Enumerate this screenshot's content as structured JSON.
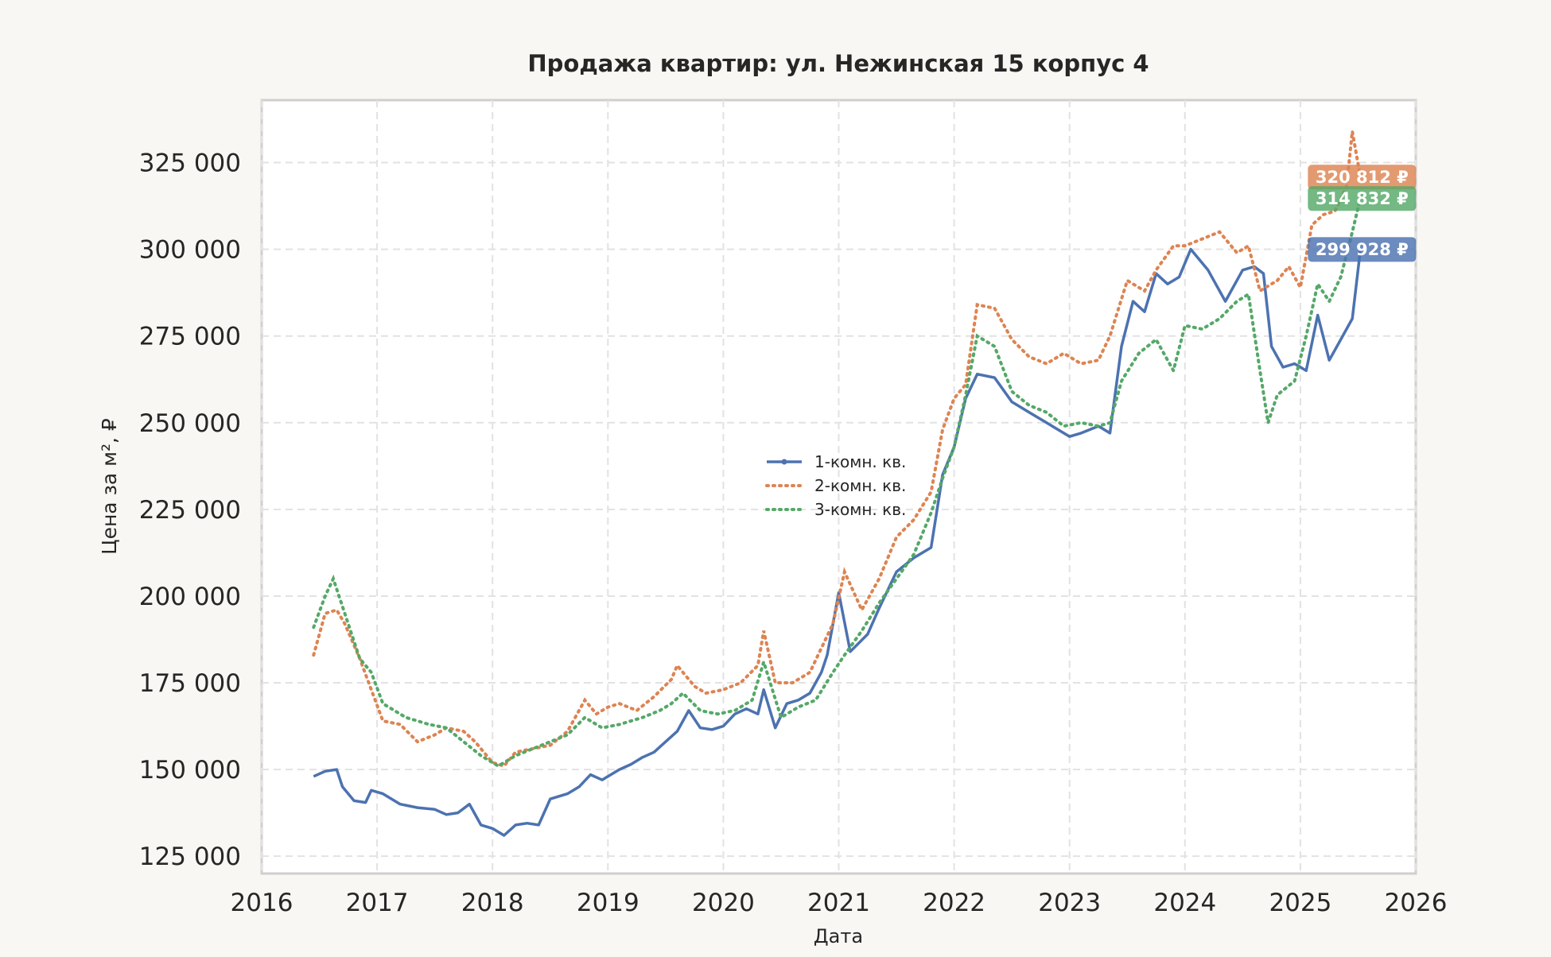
{
  "chart_data": {
    "type": "line",
    "title": "Продажа квартир: ул. Нежинская 15 корпус 4",
    "xlabel": "Дата",
    "ylabel": "Цена за м², ₽",
    "xlim": [
      2016,
      2026
    ],
    "ylim": [
      120000,
      343000
    ],
    "x_ticks": [
      "2016",
      "2017",
      "2018",
      "2019",
      "2020",
      "2021",
      "2022",
      "2023",
      "2024",
      "2025",
      "2026"
    ],
    "y_ticks": [
      "125 000",
      "150 000",
      "175 000",
      "200 000",
      "225 000",
      "250 000",
      "275 000",
      "300 000",
      "325 000"
    ],
    "grid": true,
    "legend_position": "center",
    "series": [
      {
        "name": "1-комн. кв.",
        "color": "#4c72b0",
        "line_style": "solid",
        "last_value_label": "299 928 ₽",
        "x": [
          2016.45,
          2016.55,
          2016.65,
          2016.7,
          2016.8,
          2016.9,
          2016.95,
          2017.05,
          2017.2,
          2017.35,
          2017.5,
          2017.6,
          2017.7,
          2017.8,
          2017.9,
          2018.0,
          2018.1,
          2018.2,
          2018.3,
          2018.4,
          2018.5,
          2018.65,
          2018.75,
          2018.85,
          2018.95,
          2019.1,
          2019.2,
          2019.3,
          2019.4,
          2019.5,
          2019.6,
          2019.7,
          2019.8,
          2019.9,
          2020.0,
          2020.1,
          2020.2,
          2020.3,
          2020.35,
          2020.45,
          2020.55,
          2020.65,
          2020.75,
          2020.85,
          2020.9,
          2021.0,
          2021.1,
          2021.25,
          2021.35,
          2021.5,
          2021.65,
          2021.8,
          2021.9,
          2022.0,
          2022.1,
          2022.2,
          2022.35,
          2022.5,
          2022.65,
          2022.8,
          2022.9,
          2023.0,
          2023.1,
          2023.25,
          2023.35,
          2023.45,
          2023.55,
          2023.65,
          2023.75,
          2023.85,
          2023.95,
          2024.05,
          2024.2,
          2024.35,
          2024.5,
          2024.6,
          2024.68,
          2024.75,
          2024.85,
          2024.95,
          2025.05,
          2025.15,
          2025.25,
          2025.35,
          2025.45,
          2025.52
        ],
        "y": [
          148000,
          149500,
          150000,
          145000,
          141000,
          140500,
          144000,
          143000,
          140000,
          139000,
          138500,
          137000,
          137500,
          140000,
          134000,
          133000,
          131000,
          134000,
          134500,
          134000,
          141500,
          143000,
          145000,
          148500,
          147000,
          150000,
          151500,
          153500,
          155000,
          158000,
          161000,
          167000,
          162000,
          161500,
          162500,
          166000,
          167500,
          166000,
          173000,
          162000,
          169000,
          170000,
          172000,
          178000,
          183000,
          201000,
          184000,
          189000,
          196500,
          207000,
          211000,
          214000,
          235000,
          243000,
          257000,
          264000,
          263000,
          256000,
          253000,
          250000,
          248000,
          246000,
          247000,
          249000,
          247000,
          272000,
          285000,
          282000,
          293000,
          290000,
          292000,
          300000,
          294000,
          285000,
          294000,
          295000,
          293000,
          272000,
          266000,
          267000,
          265000,
          281000,
          268000,
          274000,
          280000,
          299928
        ]
      },
      {
        "name": "2-комн. кв.",
        "color": "#dd8452",
        "line_style": "dotted",
        "last_value_label": "320 812 ₽",
        "x": [
          2016.45,
          2016.55,
          2016.65,
          2016.72,
          2016.85,
          2016.95,
          2017.05,
          2017.2,
          2017.35,
          2017.5,
          2017.6,
          2017.75,
          2017.85,
          2018.0,
          2018.1,
          2018.2,
          2018.35,
          2018.5,
          2018.65,
          2018.8,
          2018.9,
          2019.0,
          2019.1,
          2019.25,
          2019.4,
          2019.55,
          2019.6,
          2019.75,
          2019.85,
          2020.0,
          2020.15,
          2020.3,
          2020.35,
          2020.45,
          2020.6,
          2020.75,
          2020.85,
          2020.95,
          2021.05,
          2021.2,
          2021.35,
          2021.5,
          2021.65,
          2021.8,
          2021.9,
          2022.0,
          2022.1,
          2022.2,
          2022.35,
          2022.5,
          2022.65,
          2022.8,
          2022.95,
          2023.1,
          2023.25,
          2023.35,
          2023.5,
          2023.65,
          2023.75,
          2023.9,
          2024.0,
          2024.15,
          2024.3,
          2024.45,
          2024.55,
          2024.65,
          2024.8,
          2024.9,
          2025.0,
          2025.1,
          2025.2,
          2025.3,
          2025.4,
          2025.45,
          2025.52
        ],
        "y": [
          183000,
          195000,
          196000,
          192000,
          182000,
          173000,
          164000,
          163000,
          158000,
          160000,
          162000,
          161000,
          158000,
          152000,
          151000,
          155000,
          156000,
          157000,
          161000,
          170000,
          166000,
          168000,
          169000,
          167000,
          171000,
          176000,
          180000,
          174000,
          172000,
          173000,
          175000,
          180000,
          190000,
          175000,
          175000,
          178000,
          185000,
          192000,
          207000,
          196000,
          205000,
          217000,
          222000,
          230000,
          248000,
          257000,
          261000,
          284000,
          283000,
          274000,
          269000,
          267000,
          270000,
          267000,
          268000,
          275000,
          291000,
          288000,
          294000,
          301000,
          301000,
          303000,
          305000,
          299000,
          301000,
          288000,
          291000,
          295000,
          289000,
          307000,
          310000,
          311000,
          318000,
          334000,
          320812
        ]
      },
      {
        "name": "3-комн. кв.",
        "color": "#55a868",
        "line_style": "dotted",
        "last_value_label": "314 832 ₽",
        "x": [
          2016.45,
          2016.55,
          2016.62,
          2016.72,
          2016.85,
          2016.95,
          2017.05,
          2017.25,
          2017.45,
          2017.6,
          2017.75,
          2017.9,
          2018.05,
          2018.2,
          2018.35,
          2018.5,
          2018.65,
          2018.8,
          2018.95,
          2019.1,
          2019.3,
          2019.45,
          2019.55,
          2019.65,
          2019.8,
          2019.95,
          2020.1,
          2020.25,
          2020.35,
          2020.5,
          2020.65,
          2020.8,
          2020.95,
          2021.05,
          2021.2,
          2021.35,
          2021.5,
          2021.65,
          2021.8,
          2021.9,
          2022.0,
          2022.1,
          2022.2,
          2022.35,
          2022.5,
          2022.65,
          2022.8,
          2022.95,
          2023.1,
          2023.25,
          2023.35,
          2023.45,
          2023.6,
          2023.75,
          2023.9,
          2024.0,
          2024.15,
          2024.3,
          2024.45,
          2024.55,
          2024.65,
          2024.72,
          2024.8,
          2024.95,
          2025.05,
          2025.15,
          2025.25,
          2025.35,
          2025.45,
          2025.52
        ],
        "y": [
          191000,
          200000,
          205000,
          195000,
          182000,
          178000,
          169000,
          165000,
          163000,
          162000,
          158000,
          154000,
          151000,
          154000,
          156000,
          158000,
          160000,
          165000,
          162000,
          163000,
          165000,
          167000,
          169000,
          172000,
          167000,
          166000,
          167000,
          170000,
          181000,
          165000,
          168000,
          170000,
          178000,
          183000,
          190000,
          198000,
          205000,
          212000,
          224000,
          234000,
          243000,
          258000,
          275000,
          272000,
          259000,
          255000,
          253000,
          249000,
          250000,
          249000,
          250000,
          262000,
          270000,
          274000,
          265000,
          278000,
          277000,
          280000,
          285000,
          287000,
          265000,
          250000,
          258000,
          262000,
          275000,
          290000,
          285000,
          292000,
          305000,
          314832
        ]
      }
    ]
  }
}
